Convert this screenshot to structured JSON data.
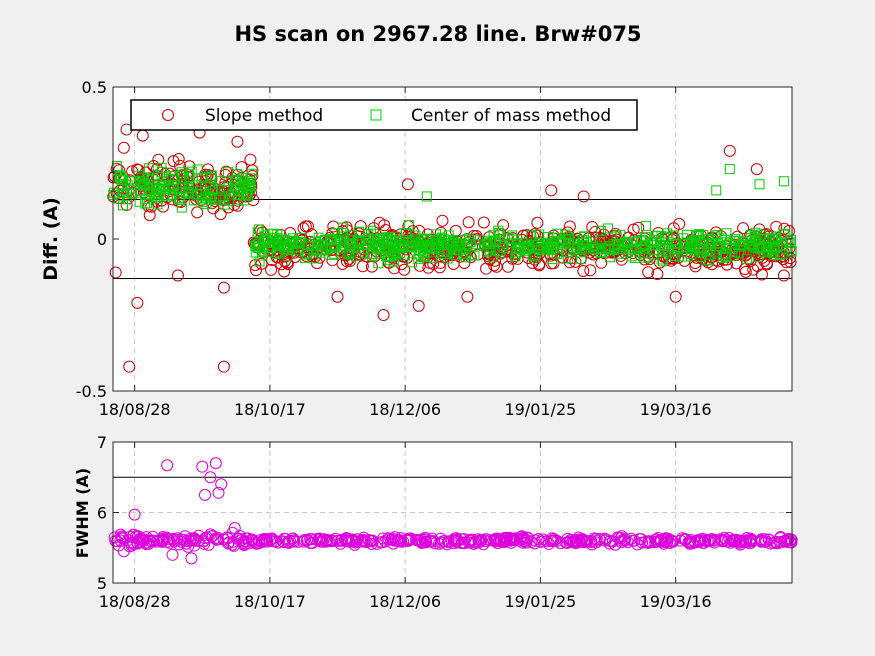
{
  "title": "HS scan on 2967.28 line. Brw#075",
  "colors": {
    "slope": "#cc0000",
    "com": "#00cc00",
    "fwhm": "#dd00dd",
    "background": "#f0f0f0"
  },
  "chart_data": [
    {
      "type": "scatter",
      "ylabel": "Diff.  (A)",
      "xlim": [
        "2018-08-20",
        "2019-04-28"
      ],
      "ylim": [
        -0.5,
        0.5
      ],
      "yticks": [
        "-0.5",
        "0",
        "0.5"
      ],
      "xticks": [
        "18/08/28",
        "18/10/17",
        "18/12/06",
        "19/01/25",
        "19/03/16"
      ],
      "grid": "vertical dashed",
      "reference_lines": [
        0.13,
        -0.13
      ],
      "legend": {
        "position": "top",
        "entries": [
          "Slope method",
          "Center of mass method"
        ]
      },
      "series": [
        {
          "name": "Slope method",
          "marker": "circle",
          "segments": [
            {
              "from": "2018-08-20",
              "to": "2018-10-11",
              "mean": 0.17,
              "spread": 0.07
            },
            {
              "from": "2018-10-11",
              "to": "2019-04-28",
              "mean": -0.03,
              "spread": 0.06
            }
          ],
          "outliers": [
            {
              "x": "2018-08-21",
              "y": -0.11
            },
            {
              "x": "2018-08-24",
              "y": 0.3
            },
            {
              "x": "2018-08-25",
              "y": 0.36
            },
            {
              "x": "2018-08-26",
              "y": -0.42
            },
            {
              "x": "2018-08-29",
              "y": -0.21
            },
            {
              "x": "2018-08-31",
              "y": 0.34
            },
            {
              "x": "2018-09-13",
              "y": -0.12
            },
            {
              "x": "2018-09-21",
              "y": 0.35
            },
            {
              "x": "2018-09-30",
              "y": -0.42
            },
            {
              "x": "2018-09-30",
              "y": -0.16
            },
            {
              "x": "2018-10-05",
              "y": 0.32
            },
            {
              "x": "2018-11-11",
              "y": -0.19
            },
            {
              "x": "2018-11-28",
              "y": -0.25
            },
            {
              "x": "2018-12-07",
              "y": 0.18
            },
            {
              "x": "2018-12-11",
              "y": -0.22
            },
            {
              "x": "2018-12-29",
              "y": -0.19
            },
            {
              "x": "2019-01-29",
              "y": 0.16
            },
            {
              "x": "2019-02-10",
              "y": 0.14
            },
            {
              "x": "2019-03-16",
              "y": -0.19
            },
            {
              "x": "2019-04-05",
              "y": 0.29
            },
            {
              "x": "2019-04-15",
              "y": 0.23
            },
            {
              "x": "2019-04-25",
              "y": -0.12
            }
          ]
        },
        {
          "name": "Center of mass method",
          "marker": "square",
          "segments": [
            {
              "from": "2018-08-20",
              "to": "2018-10-11",
              "mean": 0.17,
              "spread": 0.05
            },
            {
              "from": "2018-10-11",
              "to": "2019-04-28",
              "mean": -0.02,
              "spread": 0.04
            }
          ],
          "outliers": [
            {
              "x": "2018-12-14",
              "y": 0.14
            },
            {
              "x": "2019-03-31",
              "y": 0.16
            },
            {
              "x": "2019-04-05",
              "y": 0.23
            },
            {
              "x": "2019-04-16",
              "y": 0.18
            },
            {
              "x": "2019-04-25",
              "y": 0.19
            }
          ]
        }
      ]
    },
    {
      "type": "scatter",
      "ylabel": "FWHM (A)",
      "xlim": [
        "2018-08-20",
        "2019-04-28"
      ],
      "ylim": [
        5,
        7
      ],
      "yticks": [
        "5",
        "6",
        "7"
      ],
      "xticks": [
        "18/08/28",
        "18/10/17",
        "18/12/06",
        "19/01/25",
        "19/03/16"
      ],
      "grid": "vertical and horizontal dashed",
      "reference_lines": [
        6.5
      ],
      "series": [
        {
          "name": "",
          "marker": "circle",
          "segments": [
            {
              "from": "2018-08-20",
              "to": "2018-10-11",
              "mean": 5.6,
              "spread": 0.08
            },
            {
              "from": "2018-10-11",
              "to": "2019-04-28",
              "mean": 5.6,
              "spread": 0.04
            }
          ],
          "outliers": [
            {
              "x": "2018-08-24",
              "y": 5.45
            },
            {
              "x": "2018-08-28",
              "y": 5.97
            },
            {
              "x": "2018-09-09",
              "y": 6.67
            },
            {
              "x": "2018-09-11",
              "y": 5.4
            },
            {
              "x": "2018-09-22",
              "y": 6.65
            },
            {
              "x": "2018-09-23",
              "y": 6.25
            },
            {
              "x": "2018-09-25",
              "y": 6.5
            },
            {
              "x": "2018-09-27",
              "y": 6.7
            },
            {
              "x": "2018-09-28",
              "y": 6.28
            },
            {
              "x": "2018-09-29",
              "y": 6.4
            },
            {
              "x": "2018-09-18",
              "y": 5.35
            },
            {
              "x": "2018-10-04",
              "y": 5.78
            }
          ]
        }
      ]
    }
  ]
}
